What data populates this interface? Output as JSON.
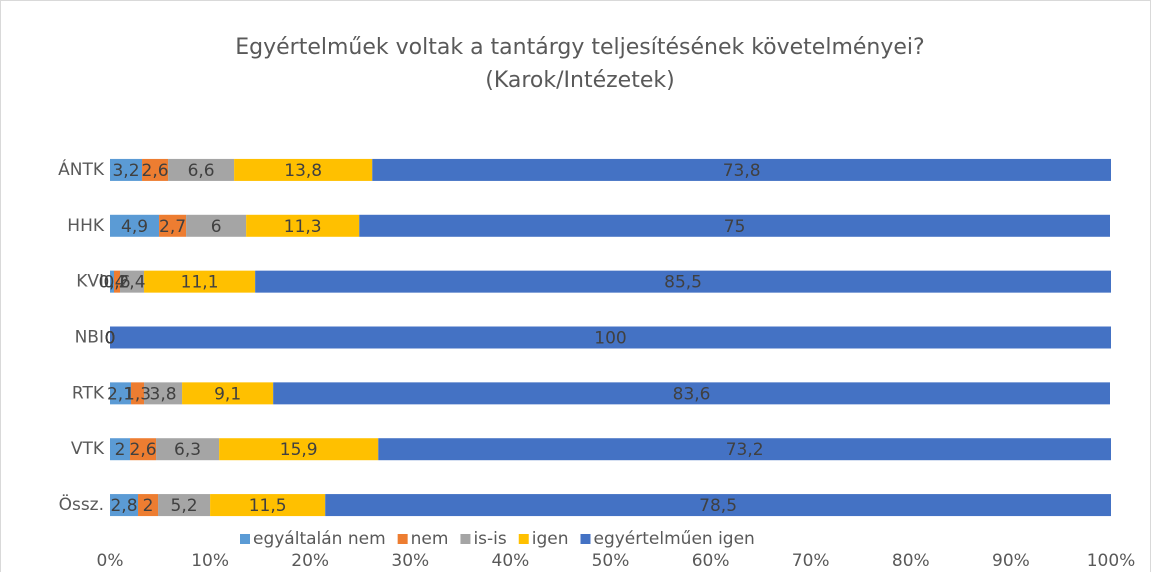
{
  "chart_data": {
    "type": "stacked_bar_horizontal",
    "title": [
      "Egyértelműek voltak a tantárgy teljesítésének követelményei?",
      "(Karok/Intézetek)"
    ],
    "categories": [
      "ÁNTK",
      "HHK",
      "KVI",
      "NBI",
      "RTK",
      "VTK",
      "Össz."
    ],
    "series": [
      {
        "name": "egyáltalán nem",
        "color": "#5b9bd5",
        "values": [
          3.2,
          4.9,
          0.4,
          0,
          2.1,
          2,
          2.8
        ],
        "value_labels": [
          "3,2",
          "4,9",
          "0,4",
          "0",
          "2,1",
          "2",
          "2,8"
        ]
      },
      {
        "name": "nem",
        "color": "#ed7d31",
        "values": [
          2.6,
          2.7,
          0.6,
          0,
          1.3,
          2.6,
          2
        ],
        "value_labels": [
          "2,6",
          "2,7",
          "0,6",
          "0",
          "1,3",
          "2,6",
          "2"
        ]
      },
      {
        "name": "is-is",
        "color": "#a5a5a5",
        "values": [
          6.6,
          6,
          2.4,
          0,
          3.8,
          6.3,
          5.2
        ],
        "value_labels": [
          "6,6",
          "6",
          "2,4",
          "0",
          "3,8",
          "6,3",
          "5,2"
        ]
      },
      {
        "name": "igen",
        "color": "#ffc000",
        "values": [
          13.8,
          11.3,
          11.1,
          0,
          9.1,
          15.9,
          11.5
        ],
        "value_labels": [
          "13,8",
          "11,3",
          "11,1",
          "0",
          "9,1",
          "15,9",
          "11,5"
        ]
      },
      {
        "name": "egyértelműen igen",
        "color": "#4472c4",
        "values": [
          73.8,
          75,
          85.5,
          100,
          83.6,
          73.2,
          78.5
        ],
        "value_labels": [
          "73,8",
          "75",
          "85,5",
          "100",
          "83,6",
          "73,2",
          "78,5"
        ]
      }
    ],
    "xlim": [
      0,
      100
    ],
    "xticks": [
      {
        "value": 0,
        "label": "0%"
      },
      {
        "value": 10,
        "label": "10%"
      },
      {
        "value": 20,
        "label": "20%"
      },
      {
        "value": 30,
        "label": "30%"
      },
      {
        "value": 40,
        "label": "40%"
      },
      {
        "value": 50,
        "label": "50%"
      },
      {
        "value": 60,
        "label": "60%"
      },
      {
        "value": 70,
        "label": "70%"
      },
      {
        "value": 80,
        "label": "80%"
      },
      {
        "value": 90,
        "label": "90%"
      },
      {
        "value": 100,
        "label": "100%"
      }
    ],
    "legend": "bottom"
  }
}
